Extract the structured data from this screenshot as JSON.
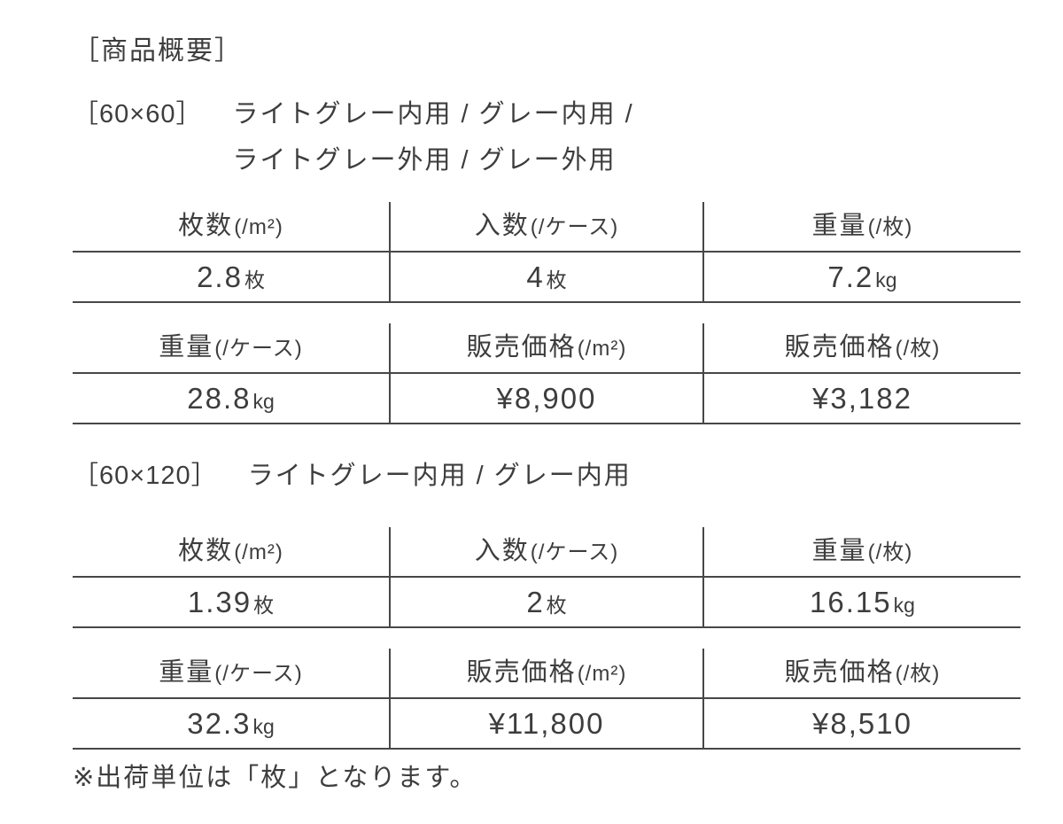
{
  "page": {
    "title": "［商品概要］",
    "footnote": "※出荷単位は「枚」となります。"
  },
  "colors": {
    "text": "#3d3d3d",
    "table_border": "#474747",
    "background": "#ffffff"
  },
  "sections": [
    {
      "size": "［60×60］",
      "colors_line1": "ライトグレー内用 / グレー内用 /",
      "colors_line2": "ライトグレー外用 / グレー外用",
      "groups": [
        {
          "cols": [
            {
              "h_label": "枚数",
              "h_paren": "(/m²)",
              "v_num": "2.8",
              "v_unit": "枚"
            },
            {
              "h_label": "入数",
              "h_paren": "(/ケース)",
              "v_num": "4",
              "v_unit": "枚"
            },
            {
              "h_label": "重量",
              "h_paren": "(/枚)",
              "v_num": "7.2",
              "v_unit": "kg"
            }
          ]
        },
        {
          "cols": [
            {
              "h_label": "重量",
              "h_paren": "(/ケース)",
              "v_num": "28.8",
              "v_unit": "kg"
            },
            {
              "h_label": "販売価格",
              "h_paren": "(/m²)",
              "v_num": "¥8,900"
            },
            {
              "h_label": "販売価格",
              "h_paren": "(/枚)",
              "v_num": "¥3,182"
            }
          ]
        }
      ]
    },
    {
      "size": "［60×120］",
      "colors_line1": "ライトグレー内用 / グレー内用",
      "groups": [
        {
          "cols": [
            {
              "h_label": "枚数",
              "h_paren": "(/m²)",
              "v_num": "1.39",
              "v_unit": "枚"
            },
            {
              "h_label": "入数",
              "h_paren": "(/ケース)",
              "v_num": "2",
              "v_unit": "枚"
            },
            {
              "h_label": "重量",
              "h_paren": "(/枚)",
              "v_num": "16.15",
              "v_unit": "kg"
            }
          ]
        },
        {
          "cols": [
            {
              "h_label": "重量",
              "h_paren": "(/ケース)",
              "v_num": "32.3",
              "v_unit": "kg"
            },
            {
              "h_label": "販売価格",
              "h_paren": "(/m²)",
              "v_num": "¥11,800"
            },
            {
              "h_label": "販売価格",
              "h_paren": "(/枚)",
              "v_num": "¥8,510"
            }
          ]
        }
      ]
    }
  ]
}
